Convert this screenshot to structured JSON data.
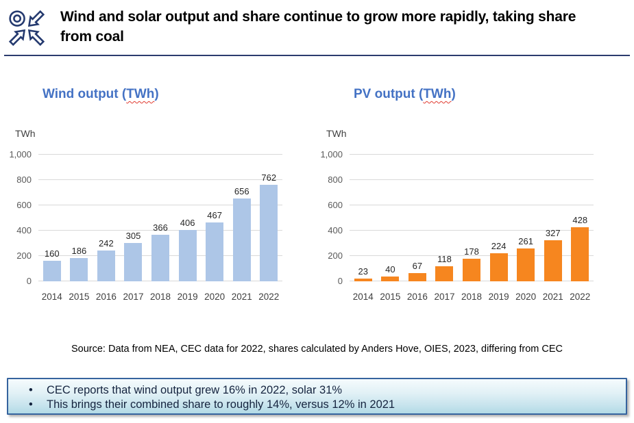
{
  "header": {
    "title": "Wind and solar output and share continue to grow more rapidly, taking share from coal",
    "logo": "oies-logo"
  },
  "colors": {
    "navy": "#2B3B6E",
    "chart_title_blue": "#4472C4",
    "wind_bar": "#ADC6E7",
    "pv_bar": "#F6861F",
    "gridline": "#D9D9D9",
    "callout_border": "#35639E"
  },
  "chart_data": [
    {
      "type": "bar",
      "title": "Wind output (TWh)",
      "title_prefix": "Wind output (",
      "title_unit": "TWh",
      "title_suffix": ")",
      "ylabel": "TWh",
      "categories": [
        "2014",
        "2015",
        "2016",
        "2017",
        "2018",
        "2019",
        "2020",
        "2021",
        "2022"
      ],
      "values": [
        160,
        186,
        242,
        305,
        366,
        406,
        467,
        656,
        762
      ],
      "ylim": [
        0,
        1000
      ],
      "yticks": [
        {
          "value": 0,
          "label": "0"
        },
        {
          "value": 200,
          "label": "200"
        },
        {
          "value": 400,
          "label": "400"
        },
        {
          "value": 600,
          "label": "600"
        },
        {
          "value": 800,
          "label": "800"
        },
        {
          "value": 1000,
          "label": "1,000"
        }
      ],
      "grid": true,
      "data_labels": true,
      "legend": false,
      "bar_color": "#ADC6E7"
    },
    {
      "type": "bar",
      "title": "PV output (TWh)",
      "title_prefix": "PV output (",
      "title_unit": "TWh",
      "title_suffix": ")",
      "ylabel": "TWh",
      "categories": [
        "2014",
        "2015",
        "2016",
        "2017",
        "2018",
        "2019",
        "2020",
        "2021",
        "2022"
      ],
      "values": [
        23,
        40,
        67,
        118,
        178,
        224,
        261,
        327,
        428
      ],
      "ylim": [
        0,
        1000
      ],
      "yticks": [
        {
          "value": 0,
          "label": "0"
        },
        {
          "value": 200,
          "label": "200"
        },
        {
          "value": 400,
          "label": "400"
        },
        {
          "value": 600,
          "label": "600"
        },
        {
          "value": 800,
          "label": "800"
        },
        {
          "value": 1000,
          "label": "1,000"
        }
      ],
      "grid": true,
      "data_labels": true,
      "legend": false,
      "bar_color": "#F6861F"
    }
  ],
  "source_note": "Source: Data from NEA, CEC data for 2022, shares calculated by Anders Hove, OIES, 2023, differing from CEC",
  "callout": {
    "bullets": [
      "CEC reports that wind output grew 16% in 2022, solar 31%",
      "This brings their combined share to roughly 14%, versus 12% in 2021"
    ]
  }
}
